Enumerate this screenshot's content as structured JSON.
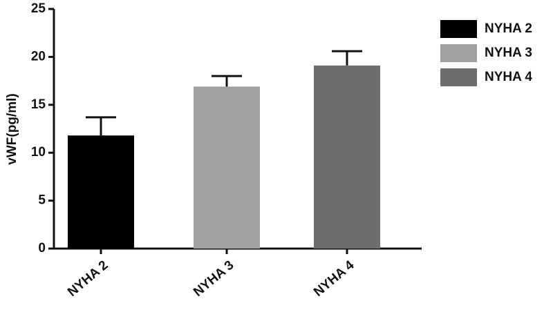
{
  "chart_data": {
    "type": "bar",
    "y_label": "vWF(pg/ml)",
    "categories": [
      "NYHA 2",
      "NYHA 3",
      "NYHA 4"
    ],
    "values": [
      11.8,
      16.9,
      19.1
    ],
    "errors": [
      1.9,
      1.1,
      1.5
    ],
    "colors": [
      "#000000",
      "#a0a0a0",
      "#6e6e6e"
    ],
    "ylim": [
      0,
      25
    ],
    "yticks": [
      0,
      5,
      10,
      15,
      20,
      25
    ],
    "grid": false,
    "legend": "upper-right"
  }
}
